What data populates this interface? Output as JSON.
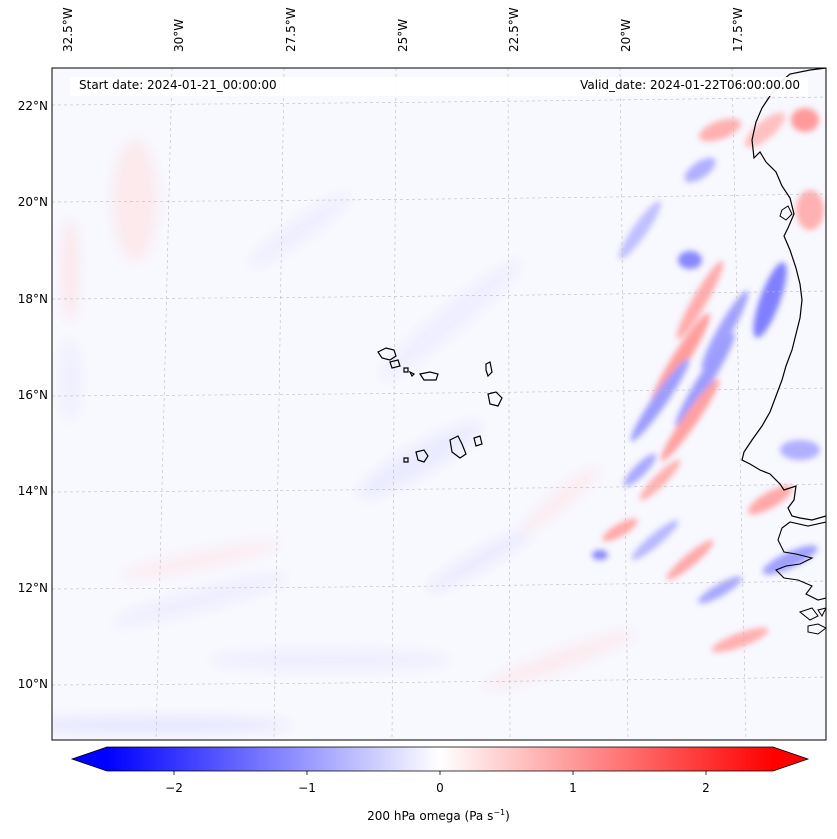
{
  "map": {
    "start_date": "Start date: 2024-01-21_00:00:00",
    "valid_date": "Valid_date: 2024-01-22T06:00:00.00",
    "lon_labels": [
      "32.5°W",
      "30°W",
      "27.5°W",
      "25°W",
      "22.5°W",
      "20°W",
      "17.5°W"
    ],
    "lat_labels": [
      "22°N",
      "20°N",
      "18°N",
      "16°N",
      "14°N",
      "12°N",
      "10°N"
    ],
    "colors": {
      "negative": "#0000ff",
      "zero": "#ffffff",
      "positive": "#ff0000",
      "coastline": "#000000",
      "gridline": "#bbbbbb"
    },
    "grid": true
  },
  "colorbar": {
    "ticks": [
      "−2",
      "−1",
      "0",
      "1",
      "2"
    ],
    "label_prefix": "200 hPa omega (Pa s",
    "label_exp": "−1",
    "label_suffix": ")",
    "range": [
      -2.5,
      2.5
    ]
  }
}
